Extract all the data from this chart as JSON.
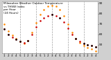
{
  "title": "Milwaukee Weather Outdoor Temperature\nvs THSW Index\nper Hour\n(24 Hours)",
  "background_color": "#d0d0d0",
  "plot_bg_color": "#ffffff",
  "hours": [
    1,
    2,
    3,
    4,
    5,
    6,
    7,
    8,
    9,
    10,
    11,
    12,
    13,
    14,
    15,
    16,
    17,
    18,
    19,
    20,
    21,
    22,
    23,
    24
  ],
  "temp": [
    65,
    60,
    57,
    55,
    53,
    52,
    54,
    60,
    67,
    73,
    76,
    78,
    79,
    78,
    76,
    72,
    66,
    60,
    56,
    53,
    51,
    50,
    49,
    48
  ],
  "thsw": [
    70,
    63,
    59,
    56,
    53,
    51,
    54,
    62,
    71,
    79,
    84,
    87,
    88,
    87,
    84,
    78,
    70,
    62,
    56,
    52,
    49,
    47,
    46,
    44
  ],
  "temp_color": "#cc0000",
  "thsw_color": "#ff8800",
  "black_color": "#000000",
  "ylim": [
    42,
    92
  ],
  "ytick_positions": [
    50,
    60,
    70,
    80,
    90
  ],
  "ytick_labels": [
    "50",
    "60",
    "70",
    "80",
    "90"
  ],
  "grid_hours": [
    5,
    9,
    13,
    17,
    21
  ],
  "marker_size": 3.5,
  "title_fontsize": 3.0
}
